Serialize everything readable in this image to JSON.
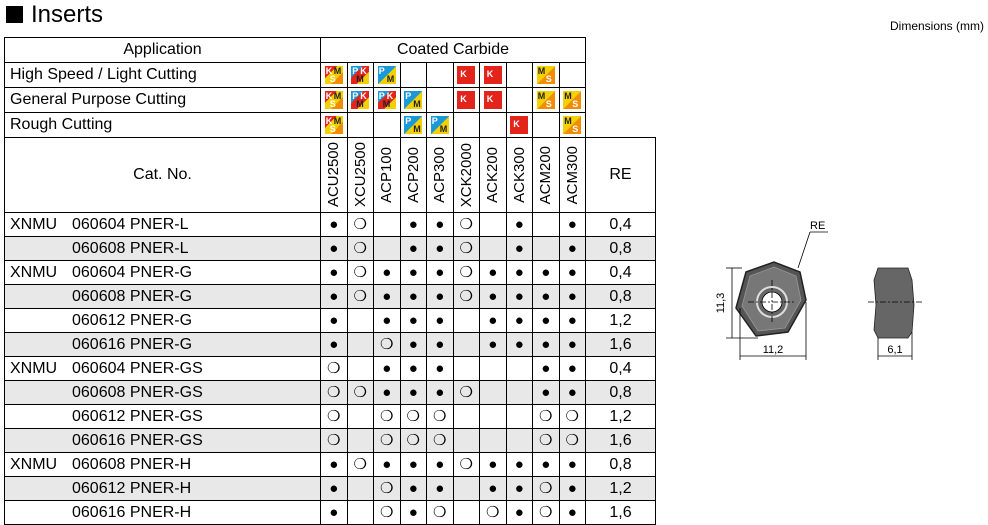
{
  "header": {
    "title": "Inserts",
    "units": "Dimensions (mm)"
  },
  "table": {
    "application_label": "Application",
    "grade_group": "Coated Carbide",
    "applications": [
      {
        "name": "High Speed / Light Cutting",
        "badges": [
          [
            "K",
            "M",
            "S"
          ],
          [
            "P",
            "K",
            "M"
          ],
          [
            "P",
            "M"
          ],
          null,
          null,
          [
            "K"
          ],
          [
            "K"
          ],
          null,
          [
            "M",
            "S"
          ],
          null
        ]
      },
      {
        "name": "General Purpose Cutting",
        "badges": [
          [
            "K",
            "M",
            "S"
          ],
          [
            "P",
            "K",
            "M"
          ],
          [
            "P",
            "K",
            "M"
          ],
          [
            "P",
            "M"
          ],
          null,
          [
            "K"
          ],
          [
            "K"
          ],
          null,
          [
            "M",
            "S"
          ],
          [
            "M",
            "S"
          ]
        ]
      },
      {
        "name": "Rough Cutting",
        "badges": [
          [
            "K",
            "M",
            "S"
          ],
          null,
          null,
          [
            "P",
            "M"
          ],
          [
            "P",
            "M"
          ],
          null,
          null,
          [
            "K"
          ],
          null,
          [
            "M",
            "S"
          ]
        ]
      }
    ],
    "cat_no_label": "Cat. No.",
    "grades": [
      "ACU2500",
      "XCU2500",
      "ACP100",
      "ACP200",
      "ACP300",
      "XCK2000",
      "ACK200",
      "ACK300",
      "ACM200",
      "ACM300"
    ],
    "re_label": "RE",
    "rows": [
      {
        "series": "XNMU",
        "code": "060604 PNER-L",
        "marks": [
          "●",
          "❍",
          null,
          "●",
          "●",
          "❍",
          null,
          "●",
          null,
          "●"
        ],
        "re": "0,4"
      },
      {
        "series": null,
        "code": "060608 PNER-L",
        "marks": [
          "●",
          "❍",
          null,
          "●",
          "●",
          "❍",
          null,
          "●",
          null,
          "●"
        ],
        "re": "0,8"
      },
      {
        "series": "XNMU",
        "code": "060604 PNER-G",
        "marks": [
          "●",
          "❍",
          "●",
          "●",
          "●",
          "❍",
          "●",
          "●",
          "●",
          "●"
        ],
        "re": "0,4"
      },
      {
        "series": null,
        "code": "060608 PNER-G",
        "marks": [
          "●",
          "❍",
          "●",
          "●",
          "●",
          "❍",
          "●",
          "●",
          "●",
          "●"
        ],
        "re": "0,8"
      },
      {
        "series": null,
        "code": "060612 PNER-G",
        "marks": [
          "●",
          null,
          "●",
          "●",
          "●",
          null,
          "●",
          "●",
          "●",
          "●"
        ],
        "re": "1,2"
      },
      {
        "series": null,
        "code": "060616 PNER-G",
        "marks": [
          "●",
          null,
          "❍",
          "●",
          "●",
          null,
          "●",
          "●",
          "●",
          "●"
        ],
        "re": "1,6"
      },
      {
        "series": "XNMU",
        "code": "060604 PNER-GS",
        "marks": [
          "❍",
          null,
          "●",
          "●",
          "●",
          null,
          null,
          null,
          "●",
          "●"
        ],
        "re": "0,4"
      },
      {
        "series": null,
        "code": "060608 PNER-GS",
        "marks": [
          "❍",
          "❍",
          "●",
          "●",
          "●",
          "❍",
          null,
          null,
          "●",
          "●"
        ],
        "re": "0,8"
      },
      {
        "series": null,
        "code": "060612 PNER-GS",
        "marks": [
          "❍",
          null,
          "❍",
          "❍",
          "❍",
          null,
          null,
          null,
          "❍",
          "❍"
        ],
        "re": "1,2"
      },
      {
        "series": null,
        "code": "060616 PNER-GS",
        "marks": [
          "❍",
          null,
          "❍",
          "❍",
          "❍",
          null,
          null,
          null,
          "❍",
          "❍"
        ],
        "re": "1,6"
      },
      {
        "series": "XNMU",
        "code": "060608 PNER-H",
        "marks": [
          "●",
          "❍",
          "●",
          "●",
          "●",
          "❍",
          "●",
          "●",
          "●",
          "●"
        ],
        "re": "0,8"
      },
      {
        "series": null,
        "code": "060612 PNER-H",
        "marks": [
          "●",
          null,
          "❍",
          "●",
          "●",
          null,
          "●",
          "●",
          "❍",
          "●"
        ],
        "re": "1,2"
      },
      {
        "series": null,
        "code": "060616 PNER-H",
        "marks": [
          "●",
          null,
          "❍",
          "●",
          "❍",
          null,
          "❍",
          "●",
          "❍",
          "●"
        ],
        "re": "1,6"
      }
    ]
  },
  "drawing": {
    "re": "RE",
    "height": "11,3",
    "width": "11,2",
    "thickness": "6,1"
  }
}
